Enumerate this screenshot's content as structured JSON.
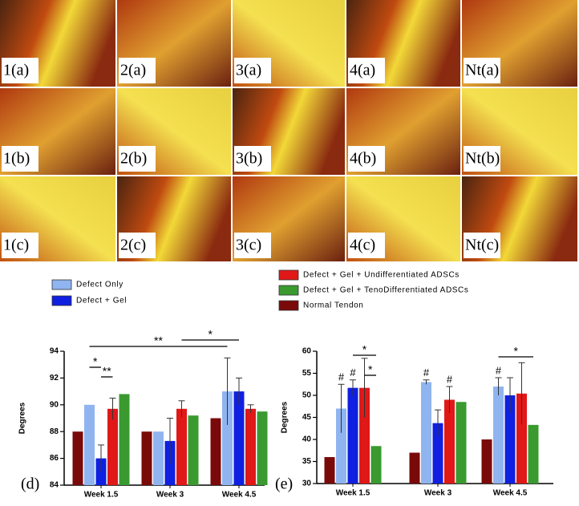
{
  "panels": [
    "1(a)",
    "2(a)",
    "3(a)",
    "4(a)",
    "Nt(a)",
    "1(b)",
    "2(b)",
    "3(b)",
    "4(b)",
    "Nt(b)",
    "1(c)",
    "2(c)",
    "3(c)",
    "4(c)",
    "Nt(c)"
  ],
  "legend": [
    {
      "name": "Normal Tendon",
      "color": "#7a0a0a"
    },
    {
      "name": "Defect Only",
      "color": "#8fb4f0"
    },
    {
      "name": "Defect + Gel",
      "color": "#1020e0"
    },
    {
      "name": "Defect + Gel + Undifferentiated ADSCs",
      "color": "#e01818"
    },
    {
      "name": "Defect + Gel + TenoDifferentiated ADSCs",
      "color": "#3a9a30"
    }
  ],
  "chart_data": [
    {
      "type": "bar",
      "panel_label": "(d)",
      "y_label": "Degrees",
      "categories": [
        "Week 1.5",
        "Week 3",
        "Week 4.5"
      ],
      "ylim": [
        84,
        94
      ],
      "yticks": [
        84,
        86,
        88,
        90,
        92,
        94
      ],
      "series": [
        {
          "values": [
            88,
            88,
            89
          ],
          "errors": [
            null,
            null,
            null
          ]
        },
        {
          "values": [
            90,
            88,
            91
          ],
          "errors": [
            null,
            null,
            2.5
          ]
        },
        {
          "values": [
            86,
            87.3,
            91
          ],
          "errors": [
            1,
            1.7,
            1
          ]
        },
        {
          "values": [
            89.7,
            89.7,
            89.7
          ],
          "errors": [
            0.8,
            0.6,
            0.3
          ]
        },
        {
          "values": [
            90.8,
            89.2,
            89.5
          ],
          "errors": [
            null,
            null,
            null
          ]
        }
      ],
      "annotations": [
        {
          "text": "*",
          "from": [
            0,
            1
          ],
          "to": [
            0,
            2
          ]
        },
        {
          "text": "**",
          "from": [
            0,
            2
          ],
          "to": [
            0,
            3
          ]
        },
        {
          "text": "**",
          "from": [
            0,
            1
          ],
          "to": [
            2,
            1
          ]
        },
        {
          "text": "*",
          "from": [
            1,
            3
          ],
          "to": [
            2,
            2
          ]
        }
      ]
    },
    {
      "type": "bar",
      "panel_label": "(e)",
      "y_label": "Degrees",
      "categories": [
        "Week 1.5",
        "Week 3",
        "Week 4.5"
      ],
      "ylim": [
        30,
        60
      ],
      "yticks": [
        30,
        35,
        40,
        45,
        50,
        55,
        60
      ],
      "series": [
        {
          "values": [
            36,
            37,
            40
          ],
          "errors": [
            null,
            null,
            null
          ]
        },
        {
          "values": [
            47,
            53,
            52
          ],
          "errors": [
            5.5,
            0.5,
            2
          ]
        },
        {
          "values": [
            51.7,
            43.7,
            50
          ],
          "errors": [
            1.8,
            3,
            4
          ]
        },
        {
          "values": [
            51.7,
            49,
            50.4
          ],
          "errors": [
            6.7,
            3,
            7
          ]
        },
        {
          "values": [
            38.5,
            48.5,
            43.3
          ],
          "errors": [
            null,
            null,
            null
          ]
        }
      ],
      "annotations": [
        {
          "text": "*",
          "from": [
            0,
            2
          ],
          "to": [
            0,
            4
          ]
        },
        {
          "text": "*",
          "from": [
            0,
            3
          ],
          "to": [
            0,
            4
          ]
        },
        {
          "text": "*",
          "from": [
            2,
            1
          ],
          "to": [
            2,
            4
          ]
        },
        {
          "text": "#",
          "at": [
            0,
            1
          ]
        },
        {
          "text": "#",
          "at": [
            0,
            2
          ]
        },
        {
          "text": "#",
          "at": [
            1,
            1
          ]
        },
        {
          "text": "#",
          "at": [
            1,
            3
          ]
        },
        {
          "text": "#",
          "at": [
            2,
            1
          ]
        }
      ]
    }
  ]
}
